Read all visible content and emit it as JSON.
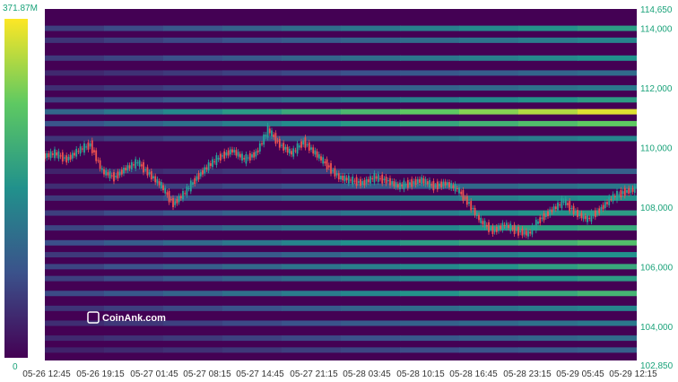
{
  "chart_data": {
    "type": "heatmap",
    "title": "",
    "watermark": "CoinAnk.com",
    "colorbar": {
      "max_label": "371.87M",
      "min_label": "0",
      "colors": [
        "#440154",
        "#3b528b",
        "#21918c",
        "#5ec962",
        "#fde725"
      ]
    },
    "x_ticks": [
      "05-26 12:45",
      "05-26 19:15",
      "05-27 01:45",
      "05-27 08:15",
      "05-27 14:45",
      "05-27 21:15",
      "05-28 03:45",
      "05-28 10:15",
      "05-28 16:45",
      "05-28 23:15",
      "05-29 05:45",
      "05-29 12:15"
    ],
    "y_ticks": [
      102850,
      104000,
      106000,
      108000,
      110000,
      112000,
      114000,
      114650
    ],
    "y_tick_labels": [
      "102,850",
      "104,000",
      "106,000",
      "108,000",
      "110,000",
      "112,000",
      "114,000",
      "114,650"
    ],
    "ylim": [
      102850,
      114650
    ],
    "price_path": [
      [
        0,
        109700
      ],
      [
        2,
        109800
      ],
      [
        4,
        109600
      ],
      [
        6,
        109900
      ],
      [
        8,
        110100
      ],
      [
        10,
        109200
      ],
      [
        12,
        109000
      ],
      [
        14,
        109300
      ],
      [
        16,
        109500
      ],
      [
        18,
        109100
      ],
      [
        20,
        108700
      ],
      [
        22,
        108100
      ],
      [
        24,
        108500
      ],
      [
        26,
        109000
      ],
      [
        28,
        109400
      ],
      [
        30,
        109700
      ],
      [
        32,
        109900
      ],
      [
        34,
        109600
      ],
      [
        36,
        109800
      ],
      [
        38,
        110600
      ],
      [
        40,
        110100
      ],
      [
        42,
        109800
      ],
      [
        44,
        110200
      ],
      [
        46,
        109800
      ],
      [
        48,
        109400
      ],
      [
        50,
        109000
      ],
      [
        52,
        108900
      ],
      [
        54,
        108800
      ],
      [
        56,
        109000
      ],
      [
        58,
        108900
      ],
      [
        60,
        108700
      ],
      [
        62,
        108800
      ],
      [
        64,
        108900
      ],
      [
        66,
        108700
      ],
      [
        68,
        108800
      ],
      [
        70,
        108600
      ],
      [
        72,
        108100
      ],
      [
        74,
        107500
      ],
      [
        76,
        107200
      ],
      [
        78,
        107400
      ],
      [
        80,
        107200
      ],
      [
        82,
        107100
      ],
      [
        84,
        107600
      ],
      [
        86,
        107900
      ],
      [
        88,
        108200
      ],
      [
        90,
        107800
      ],
      [
        92,
        107600
      ],
      [
        94,
        107900
      ],
      [
        96,
        108300
      ],
      [
        98,
        108500
      ],
      [
        100,
        108600
      ]
    ],
    "liquidity_bands": [
      {
        "price": 114000,
        "intensity": 0.55
      },
      {
        "price": 113600,
        "intensity": 0.45
      },
      {
        "price": 113000,
        "intensity": 0.5
      },
      {
        "price": 112500,
        "intensity": 0.35
      },
      {
        "price": 112000,
        "intensity": 0.4
      },
      {
        "price": 111600,
        "intensity": 0.55
      },
      {
        "price": 111200,
        "intensity": 0.95
      },
      {
        "price": 110800,
        "intensity": 0.75
      },
      {
        "price": 110300,
        "intensity": 0.45
      },
      {
        "price": 109200,
        "intensity": 0.3
      },
      {
        "price": 108700,
        "intensity": 0.4
      },
      {
        "price": 108300,
        "intensity": 0.5
      },
      {
        "price": 107800,
        "intensity": 0.55
      },
      {
        "price": 107300,
        "intensity": 0.6
      },
      {
        "price": 106800,
        "intensity": 0.7
      },
      {
        "price": 106400,
        "intensity": 0.5
      },
      {
        "price": 106000,
        "intensity": 0.6
      },
      {
        "price": 105600,
        "intensity": 0.55
      },
      {
        "price": 105100,
        "intensity": 0.65
      },
      {
        "price": 104600,
        "intensity": 0.45
      },
      {
        "price": 104100,
        "intensity": 0.4
      },
      {
        "price": 103600,
        "intensity": 0.35
      },
      {
        "price": 103200,
        "intensity": 0.3
      }
    ]
  }
}
